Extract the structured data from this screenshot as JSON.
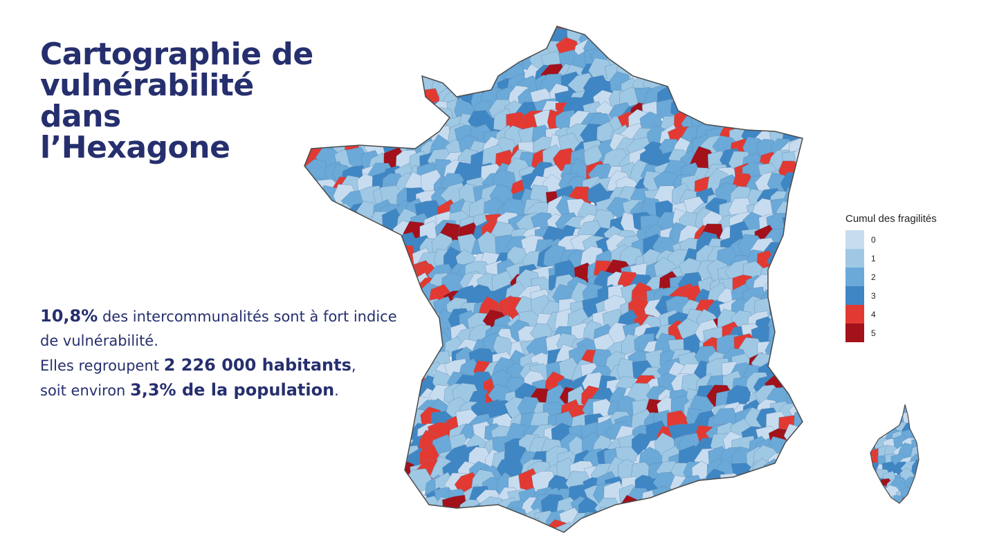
{
  "title": {
    "line1": "Cartographie de",
    "line2": "vulnérabilité",
    "line3": "dans",
    "line4": "l’Hexagone"
  },
  "stats": {
    "l1_bold": "10,8%",
    "l1_text": " des intercommunalités sont à fort indice de vulnérabilité.",
    "l2_text": "Elles regroupent ",
    "l2_bold": "2 226 000 habitants",
    "l2_end": ",",
    "l3_text": "soit environ ",
    "l3_bold": "3,3% de la population",
    "l3_end": "."
  },
  "legend": {
    "title": "Cumul des fragilités",
    "classes": [
      {
        "label": "0",
        "color": "#c8dcf0"
      },
      {
        "label": "1",
        "color": "#9ec8e4"
      },
      {
        "label": "2",
        "color": "#6aa9d8"
      },
      {
        "label": "3",
        "color": "#3f86c4"
      },
      {
        "label": "4",
        "color": "#e23a32"
      },
      {
        "label": "5",
        "color": "#a3111a"
      }
    ]
  },
  "map": {
    "territories": [
      "Hexagone",
      "Corse"
    ]
  }
}
